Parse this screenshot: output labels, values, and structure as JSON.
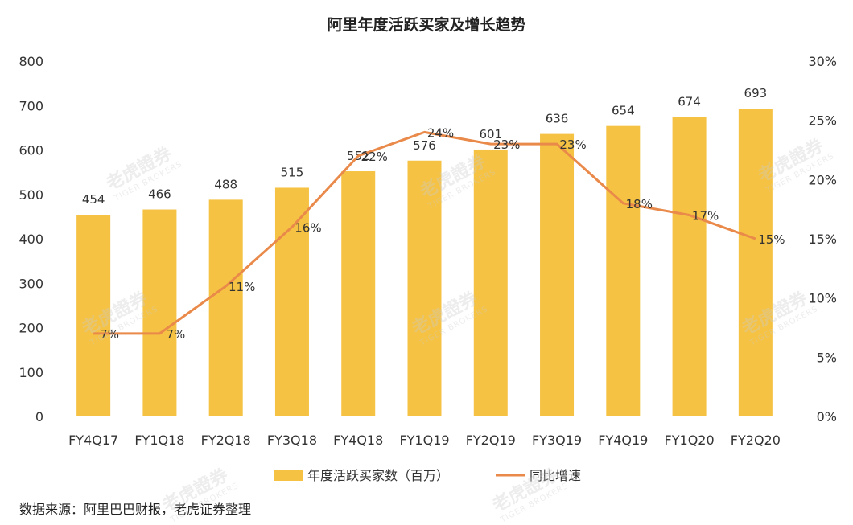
{
  "chart_data": {
    "type": "bar+line",
    "title": "阿里年度活跃买家及增长趋势",
    "categories": [
      "FY4Q17",
      "FY1Q18",
      "FY2Q18",
      "FY3Q18",
      "FY4Q18",
      "FY1Q19",
      "FY2Q19",
      "FY3Q19",
      "FY4Q19",
      "FY1Q20",
      "FY2Q20"
    ],
    "series": [
      {
        "name": "年度活跃买家数（百万）",
        "type": "bar",
        "axis": "left",
        "values": [
          454,
          466,
          488,
          515,
          552,
          576,
          601,
          636,
          654,
          674,
          693
        ],
        "labels": [
          "454",
          "466",
          "488",
          "515",
          "552",
          "576",
          "601",
          "636",
          "654",
          "674",
          "693"
        ]
      },
      {
        "name": "同比增速",
        "type": "line",
        "axis": "right",
        "values": [
          7,
          7,
          11,
          16,
          22,
          24,
          23,
          23,
          18,
          17,
          15
        ],
        "labels": [
          "7%",
          "7%",
          "11%",
          "16%",
          "22%",
          "24%",
          "23%",
          "23%",
          "18%",
          "17%",
          "15%"
        ]
      }
    ],
    "y_left": {
      "min": 0,
      "max": 800,
      "ticks": [
        "0",
        "100",
        "200",
        "300",
        "400",
        "500",
        "600",
        "700",
        "800"
      ]
    },
    "y_right": {
      "min": 0,
      "max": 30,
      "ticks": [
        "0%",
        "5%",
        "10%",
        "15%",
        "20%",
        "25%",
        "30%"
      ]
    },
    "legend_position": "bottom",
    "grid": false,
    "colors": {
      "bar": "#F5C243",
      "line": "#E9894A"
    }
  },
  "source": "数据来源：阿里巴巴财报，老虎证券整理",
  "watermark": {
    "cn": "老虎證券",
    "en": "TIGER BROKERS"
  }
}
